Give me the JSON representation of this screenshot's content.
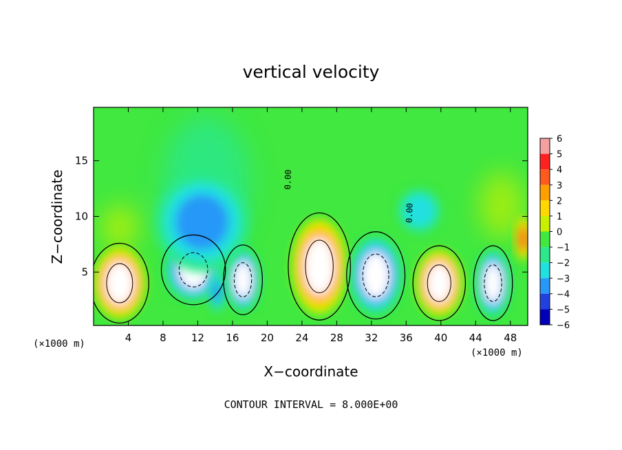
{
  "chart_data": {
    "type": "heatmap",
    "title": "vertical velocity",
    "xlabel": "X−coordinate",
    "ylabel": "Z−coordinate",
    "x_unit_left": "(×1000 m)",
    "x_unit_right": "(×1000 m)",
    "footer": "CONTOUR INTERVAL = 8.000E+00",
    "xlim": [
      0,
      50
    ],
    "ylim": [
      0.2,
      19.8
    ],
    "x_ticks": [
      4,
      8,
      12,
      16,
      20,
      24,
      28,
      32,
      36,
      40,
      44,
      48
    ],
    "y_ticks": [
      5,
      10,
      15
    ],
    "colorbar_ticks": [
      "6",
      "5",
      "4",
      "3",
      "2",
      "1",
      "0",
      "−1",
      "−2",
      "−3",
      "−4",
      "−5",
      "−6"
    ],
    "colorbar_range": [
      -6,
      6
    ],
    "contour_labels": [
      "0.00",
      "0.00"
    ],
    "palette": {
      "pos6": "#f4a0a0",
      "pos5": "#ff2020",
      "pos4": "#ff5a1e",
      "pos3": "#ffa000",
      "pos2": "#ffd800",
      "pos1": "#c8f000",
      "zero": "#40e840",
      "neg1": "#2ce88a",
      "neg2": "#20e0e0",
      "neg3": "#2898f8",
      "neg4": "#2040e0",
      "neg5": "#0000b8",
      "neg6": "#8020b0"
    },
    "background_value": 0,
    "features": [
      {
        "x": 3.0,
        "z": 4.0,
        "value": 6,
        "rx": 3.0,
        "rz": 3.2
      },
      {
        "x": 11.5,
        "z": 5.2,
        "value": -6,
        "rx": 3.3,
        "rz": 2.8
      },
      {
        "x": 17.2,
        "z": 4.3,
        "value": -6,
        "rx": 2.0,
        "rz": 2.8
      },
      {
        "x": 14.2,
        "z": 3.2,
        "value": -3,
        "rx": 1.0,
        "rz": 1.8
      },
      {
        "x": 12.5,
        "z": 9.5,
        "value": -3,
        "rx": 5.5,
        "rz": 4.5
      },
      {
        "x": 26.0,
        "z": 5.5,
        "value": 6,
        "rx": 3.2,
        "rz": 4.3
      },
      {
        "x": 32.5,
        "z": 4.7,
        "value": -6,
        "rx": 3.0,
        "rz": 3.5
      },
      {
        "x": 39.8,
        "z": 4.0,
        "value": 6,
        "rx": 2.7,
        "rz": 3.0
      },
      {
        "x": 46.0,
        "z": 4.0,
        "value": -6,
        "rx": 2.0,
        "rz": 3.0
      },
      {
        "x": 49.5,
        "z": 8.0,
        "value": 4,
        "rx": 1.0,
        "rz": 2.0
      },
      {
        "x": 37.5,
        "z": 10.5,
        "value": -2,
        "rx": 2.5,
        "rz": 2.0
      }
    ]
  }
}
